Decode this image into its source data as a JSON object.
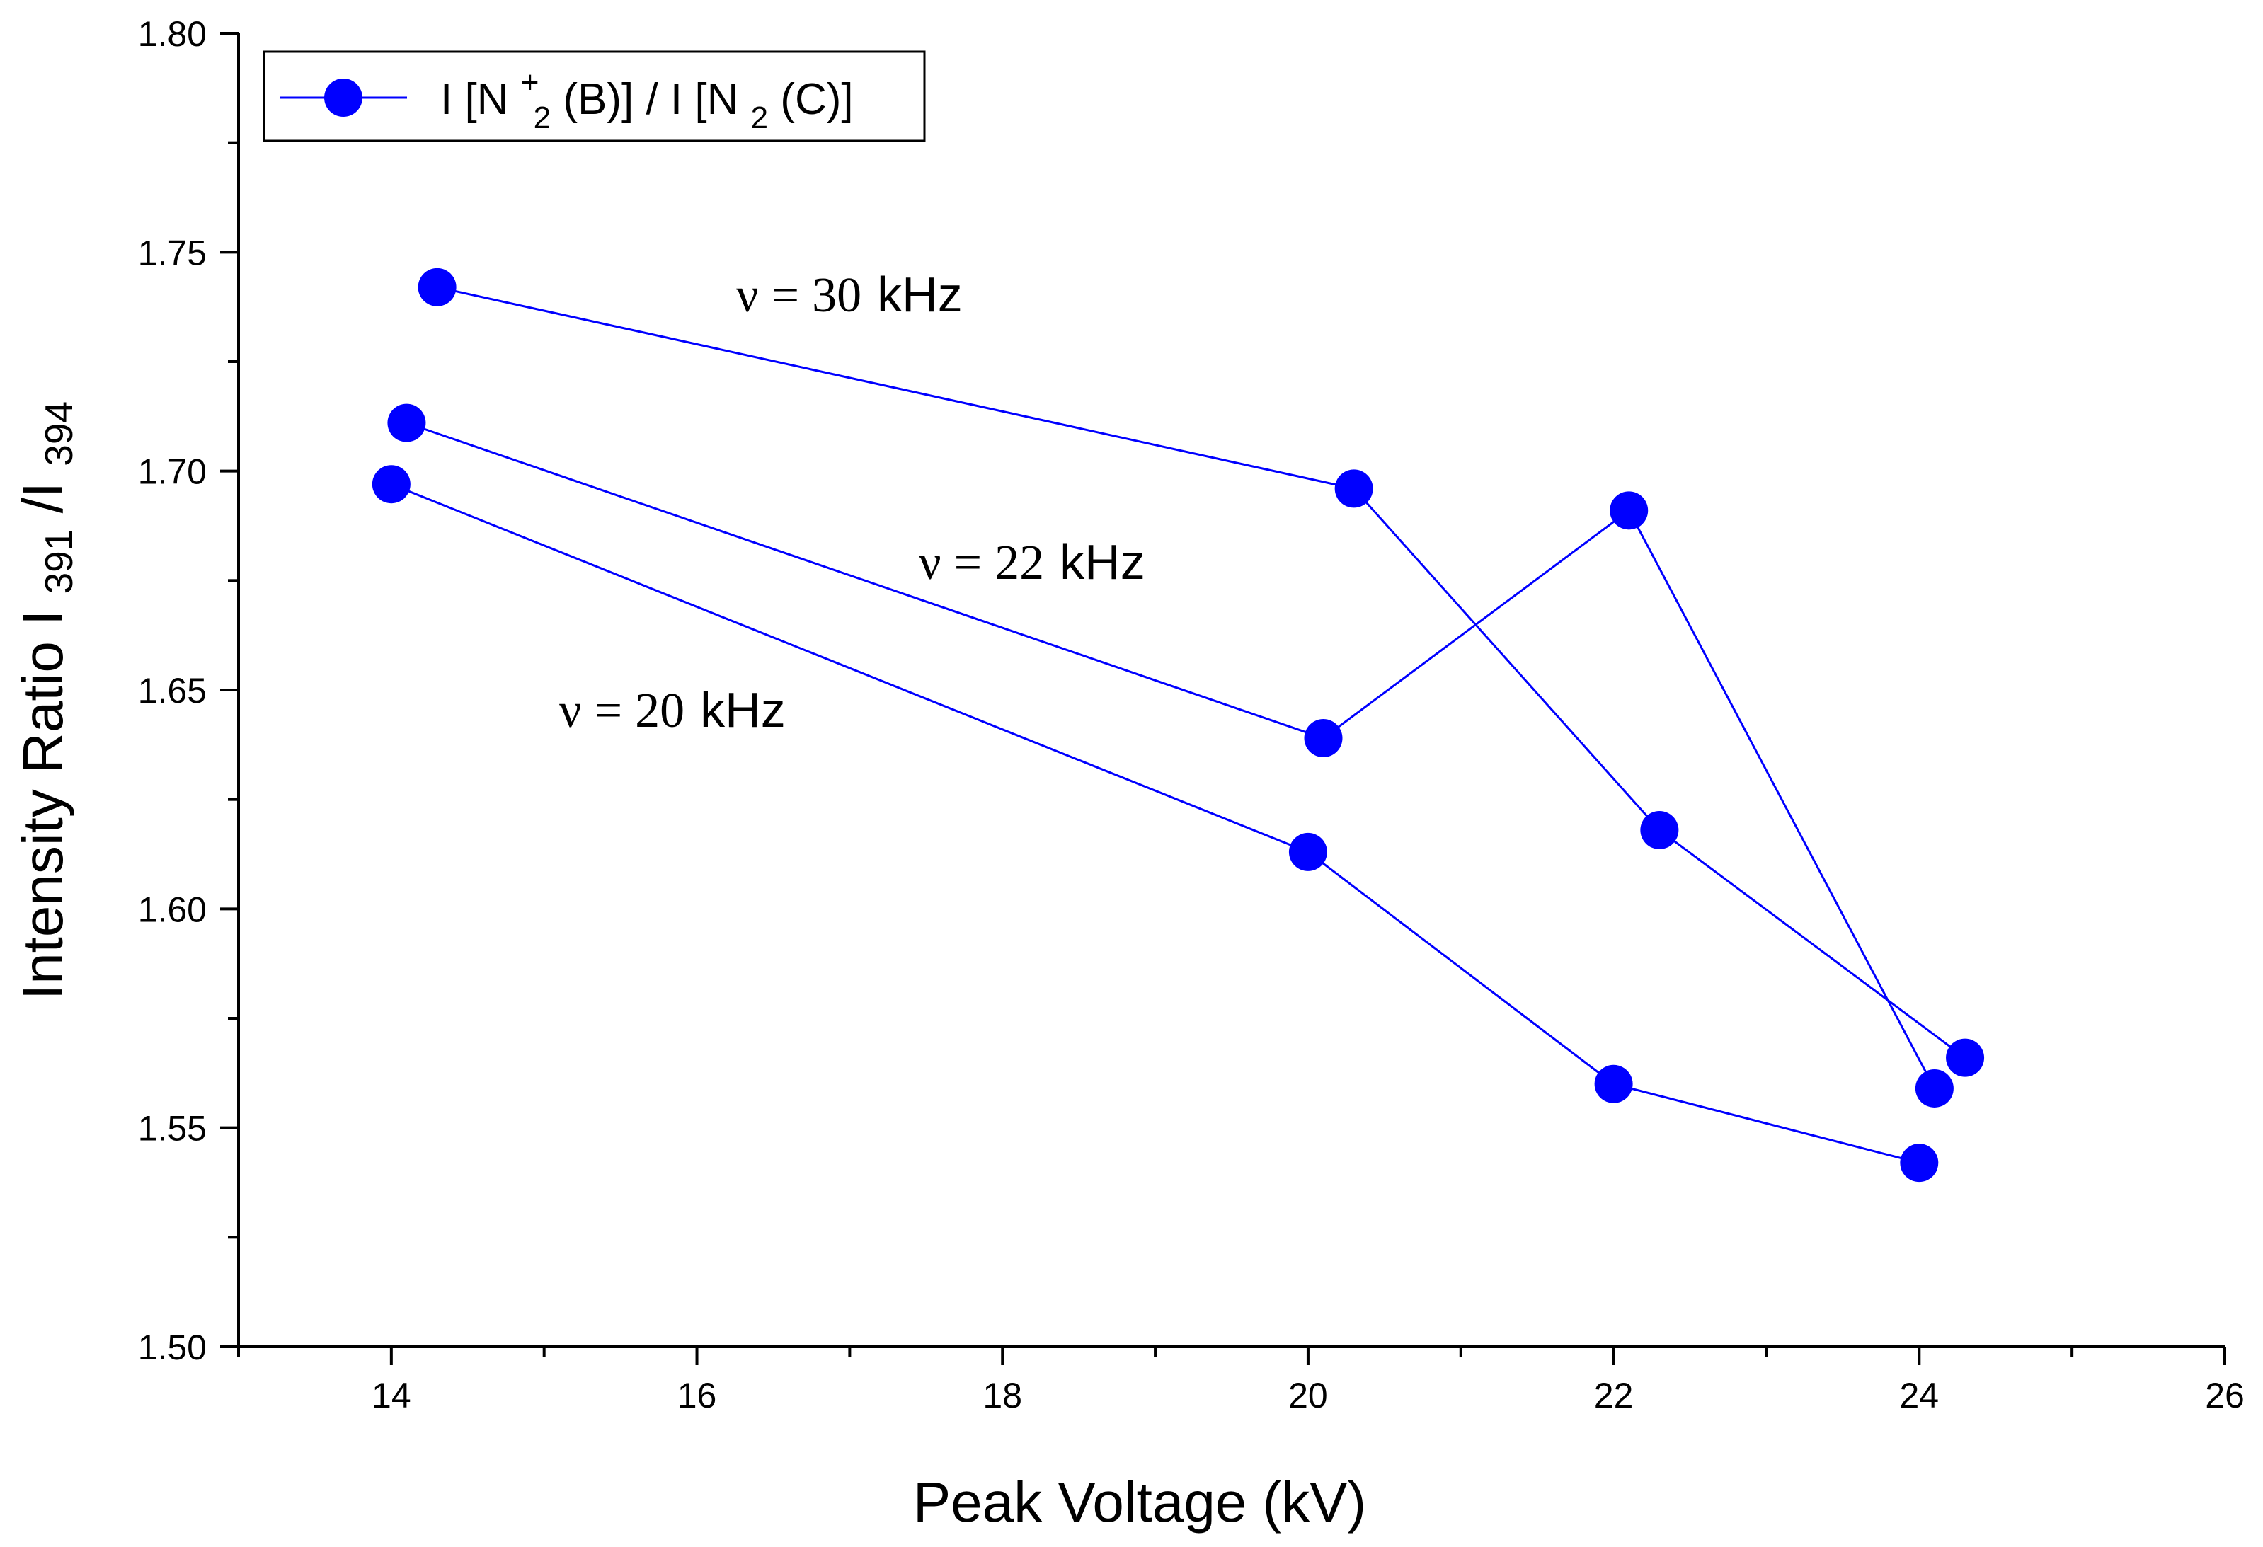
{
  "chart_data": {
    "type": "line",
    "title": "",
    "xlabel": "Peak Voltage (kV)",
    "ylabel": {
      "prefix": "Intensity Ratio  I",
      "sub1": "391",
      "mid": "/I",
      "sub2": "394"
    },
    "xlim": [
      13,
      26
    ],
    "ylim": [
      1.5,
      1.8
    ],
    "x_ticks": [
      "14",
      "16",
      "18",
      "20",
      "22",
      "24",
      "26"
    ],
    "y_ticks": [
      "1.50",
      "1.55",
      "1.60",
      "1.65",
      "1.70",
      "1.75",
      "1.80"
    ],
    "grid": false,
    "color": "#0000FF",
    "legend": {
      "position": "top-left",
      "label": {
        "pre": "I [N",
        "sup": "+",
        "sub": "2",
        "mid": "(B)] / I [N",
        "sub2": "2",
        "post": "(C)]"
      }
    },
    "series": [
      {
        "name": "ν = 30 kHz",
        "label": {
          "nu": "ν",
          "eq": "=",
          "num": "30",
          "unit": "kHz"
        },
        "x": [
          14.3,
          20.3,
          22.3,
          24.3
        ],
        "y": [
          1.742,
          1.696,
          1.618,
          1.566
        ]
      },
      {
        "name": "ν = 22 kHz",
        "label": {
          "nu": "ν",
          "eq": "=",
          "num": "22",
          "unit": "kHz"
        },
        "x": [
          14.1,
          20.1,
          22.1,
          24.1
        ],
        "y": [
          1.711,
          1.639,
          1.691,
          1.559
        ]
      },
      {
        "name": "ν = 20 kHz",
        "label": {
          "nu": "ν",
          "eq": "=",
          "num": "20",
          "unit": "kHz"
        },
        "x": [
          14.0,
          20.0,
          22.0,
          24.0
        ],
        "y": [
          1.697,
          1.613,
          1.56,
          1.542
        ]
      }
    ]
  }
}
